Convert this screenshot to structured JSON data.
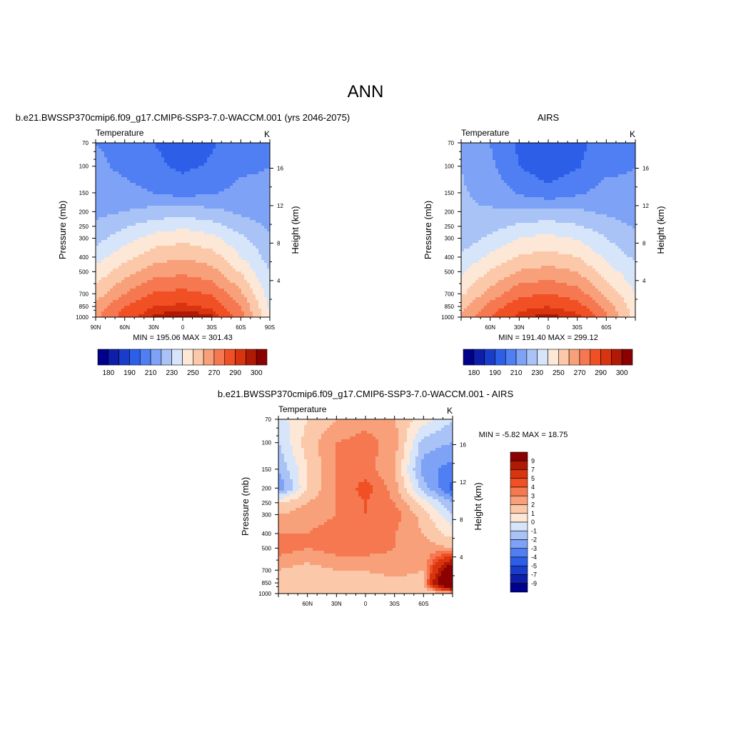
{
  "main_title": "ANN",
  "panels": [
    {
      "id": "model",
      "title": "b.e21.BWSSP370cmip6.f09_g17.CMIP6-SSP3-7.0-WACCM.001 (yrs 2046-2075)",
      "corner_left": "Temperature",
      "corner_right": "K",
      "ylabel_left": "Pressure (mb)",
      "ylabel_right": "Height (km)",
      "x_ticklabels": [
        "90N",
        "60N",
        "30N",
        "0",
        "30S",
        "60S",
        "90S"
      ],
      "y_ticklabels": [
        "70",
        "100",
        "150",
        "200",
        "250",
        "300",
        "400",
        "500",
        "700",
        "850",
        "1000"
      ],
      "height_ticklabels": [
        "16",
        "12",
        "8",
        "4"
      ],
      "stats": "MIN = 195.06  MAX = 301.43"
    },
    {
      "id": "obs",
      "title": "AIRS",
      "corner_left": "Temperature",
      "corner_right": "K",
      "ylabel_left": "Pressure (mb)",
      "ylabel_right": "Height (km)",
      "x_ticklabels": [
        "60N",
        "30N",
        "0",
        "30S",
        "60S"
      ],
      "y_ticklabels": [
        "70",
        "100",
        "150",
        "200",
        "250",
        "300",
        "400",
        "500",
        "700",
        "850",
        "1000"
      ],
      "height_ticklabels": [
        "16",
        "12",
        "8",
        "4"
      ],
      "stats": "MIN = 191.40  MAX = 299.12"
    },
    {
      "id": "diff",
      "title": "b.e21.BWSSP370cmip6.f09_g17.CMIP6-SSP3-7.0-WACCM.001 - AIRS",
      "corner_left": "Temperature",
      "corner_right": "K",
      "ylabel_left": "Pressure (mb)",
      "ylabel_right": "Height (km)",
      "x_ticklabels": [
        "60N",
        "30N",
        "0",
        "30S",
        "60S"
      ],
      "y_ticklabels": [
        "70",
        "100",
        "150",
        "200",
        "250",
        "300",
        "400",
        "500",
        "700",
        "850",
        "1000"
      ],
      "height_ticklabels": [
        "16",
        "12",
        "8",
        "4"
      ],
      "stats": "MIN =  -5.82  MAX =  18.75"
    }
  ],
  "colorbar_abs": {
    "colors": [
      "#00008b",
      "#0d1fa8",
      "#1a3ccb",
      "#2d5ee8",
      "#4f7ff2",
      "#7ea2f5",
      "#a9c3f7",
      "#d6e5fa",
      "#fde7d6",
      "#fbc8aa",
      "#f8a07a",
      "#f57850",
      "#f05024",
      "#d8340f",
      "#b01a05",
      "#8b0000"
    ],
    "labels": [
      "180",
      "190",
      "210",
      "230",
      "250",
      "270",
      "290",
      "300"
    ]
  },
  "colorbar_diff": {
    "colors": [
      "#8b0000",
      "#b01a05",
      "#d8340f",
      "#f05024",
      "#f57850",
      "#f8a07a",
      "#fbc8aa",
      "#fde7d6",
      "#d6e5fa",
      "#a9c3f7",
      "#7ea2f5",
      "#4f7ff2",
      "#2d5ee8",
      "#1a3ccb",
      "#0d1fa8",
      "#00008b"
    ],
    "labels": [
      "9",
      "7",
      "5",
      "4",
      "3",
      "2",
      "1",
      "0",
      "-1",
      "-2",
      "-3",
      "-4",
      "-5",
      "-7",
      "-9"
    ]
  },
  "chart_data": [
    {
      "type": "heatmap",
      "title": "b.e21.BWSSP370cmip6.f09_g17.CMIP6-SSP3-7.0-WACCM.001 (yrs 2046-2075)",
      "xlabel": "",
      "ylabel": "Pressure (mb)",
      "x": [
        90,
        60,
        30,
        0,
        -30,
        -60,
        -90
      ],
      "xlim": [
        90,
        -90
      ],
      "ylim": [
        1000,
        70
      ],
      "yscale": "log",
      "y": [
        1000,
        850,
        700,
        500,
        400,
        300,
        250,
        200,
        150,
        100,
        70
      ],
      "values": [
        [
          268,
          285,
          296,
          301,
          296,
          275,
          240
        ],
        [
          263,
          280,
          290,
          292,
          288,
          270,
          238
        ],
        [
          255,
          270,
          281,
          283,
          279,
          262,
          235
        ],
        [
          243,
          256,
          265,
          268,
          264,
          249,
          230
        ],
        [
          236,
          246,
          256,
          259,
          255,
          240,
          226
        ],
        [
          226,
          236,
          244,
          247,
          243,
          232,
          222
        ],
        [
          222,
          229,
          235,
          238,
          234,
          226,
          218
        ],
        [
          217,
          220,
          224,
          226,
          223,
          218,
          214
        ],
        [
          214,
          213,
          210,
          206,
          209,
          213,
          212
        ],
        [
          212,
          208,
          202,
          198,
          201,
          208,
          210
        ],
        [
          210,
          207,
          200,
          196,
          199,
          206,
          208
        ]
      ]
    },
    {
      "type": "heatmap",
      "title": "AIRS",
      "xlabel": "",
      "ylabel": "Pressure (mb)",
      "x": [
        90,
        60,
        30,
        0,
        -30,
        -60,
        -90
      ],
      "xlim": [
        90,
        -90
      ],
      "ylim": [
        1000,
        70
      ],
      "yscale": "log",
      "y": [
        1000,
        850,
        700,
        500,
        400,
        300,
        250,
        200,
        150,
        100,
        70
      ],
      "values": [
        [
          262,
          280,
          293,
          298,
          293,
          272,
          246
        ],
        [
          256,
          274,
          287,
          290,
          285,
          266,
          244
        ],
        [
          248,
          264,
          277,
          280,
          275,
          258,
          240
        ],
        [
          238,
          251,
          261,
          264,
          260,
          245,
          233
        ],
        [
          232,
          242,
          251,
          254,
          250,
          238,
          228
        ],
        [
          224,
          232,
          240,
          243,
          239,
          230,
          222
        ],
        [
          222,
          226,
          232,
          234,
          231,
          225,
          219
        ],
        [
          221,
          221,
          222,
          224,
          222,
          218,
          214
        ],
        [
          221,
          217,
          209,
          203,
          208,
          214,
          212
        ],
        [
          220,
          212,
          200,
          194,
          199,
          207,
          210
        ],
        [
          219,
          210,
          198,
          192,
          197,
          205,
          208
        ]
      ]
    },
    {
      "type": "heatmap",
      "title": "b.e21.BWSSP370cmip6.f09_g17.CMIP6-SSP3-7.0-WACCM.001 - AIRS",
      "xlabel": "",
      "ylabel": "Pressure (mb)",
      "x": [
        90,
        60,
        30,
        0,
        -30,
        -60,
        -90
      ],
      "xlim": [
        90,
        -90
      ],
      "ylim": [
        1000,
        70
      ],
      "yscale": "log",
      "y": [
        1000,
        850,
        700,
        500,
        400,
        300,
        250,
        200,
        150,
        100,
        70
      ],
      "values": [
        [
          1.5,
          2.0,
          1.5,
          2.0,
          2.0,
          1.0,
          1.0
        ],
        [
          1.5,
          1.5,
          1.5,
          1.5,
          1.5,
          1.5,
          18.0
        ],
        [
          2.0,
          1.5,
          2.0,
          2.0,
          2.5,
          2.0,
          12.0
        ],
        [
          3.5,
          3.0,
          3.5,
          3.5,
          3.0,
          2.5,
          2.0
        ],
        [
          3.0,
          3.0,
          3.5,
          3.5,
          3.0,
          2.0,
          0.5
        ],
        [
          2.0,
          2.5,
          3.0,
          4.0,
          3.5,
          1.5,
          -1.0
        ],
        [
          1.0,
          2.0,
          3.0,
          4.0,
          3.0,
          0.5,
          -2.0
        ],
        [
          -3.0,
          1.0,
          3.0,
          4.5,
          2.5,
          -1.5,
          -4.5
        ],
        [
          -2.0,
          1.0,
          3.0,
          3.5,
          2.0,
          -2.5,
          -3.5
        ],
        [
          -1.0,
          1.5,
          3.0,
          3.5,
          2.5,
          -1.5,
          -2.0
        ],
        [
          -0.5,
          1.0,
          2.0,
          2.5,
          2.0,
          0.5,
          -1.0
        ]
      ]
    }
  ]
}
